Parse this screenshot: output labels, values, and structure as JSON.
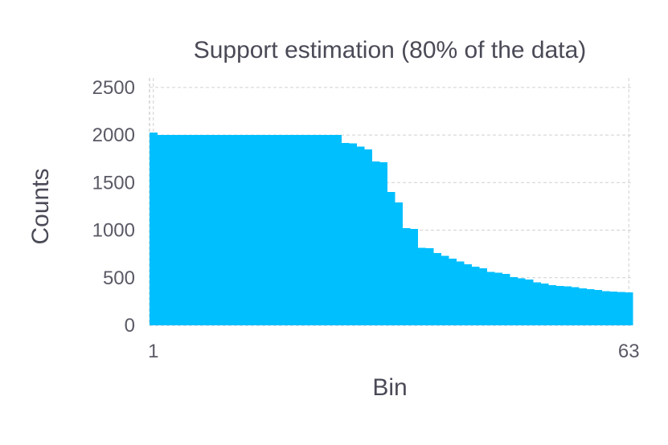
{
  "chart_data": {
    "type": "bar",
    "title": "Support estimation (80% of the data)",
    "xlabel": "Bin",
    "ylabel": "Counts",
    "ylim": [
      0,
      2600
    ],
    "yticks": [
      0,
      500,
      1000,
      1500,
      2000,
      2500
    ],
    "ytick_labels": [
      "0",
      "500",
      "1000",
      "1500",
      "2000",
      "2500"
    ],
    "xlim": [
      0.5,
      63.5
    ],
    "xticks": [
      1,
      63
    ],
    "xtick_labels": [
      "1",
      "63"
    ],
    "grid": true,
    "bar_color": "#00bfff",
    "x": [
      1,
      2,
      3,
      4,
      5,
      6,
      7,
      8,
      9,
      10,
      11,
      12,
      13,
      14,
      15,
      16,
      17,
      18,
      19,
      20,
      21,
      22,
      23,
      24,
      25,
      26,
      27,
      28,
      29,
      30,
      31,
      32,
      33,
      34,
      35,
      36,
      37,
      38,
      39,
      40,
      41,
      42,
      43,
      44,
      45,
      46,
      47,
      48,
      49,
      50,
      51,
      52,
      53,
      54,
      55,
      56,
      57,
      58,
      59,
      60,
      61,
      62,
      63
    ],
    "values": [
      2025,
      2000,
      2000,
      2000,
      2000,
      2000,
      2000,
      2000,
      2000,
      2000,
      2000,
      2000,
      2000,
      2000,
      2000,
      2000,
      2000,
      2000,
      2000,
      2000,
      2000,
      2000,
      2000,
      2000,
      2000,
      1915,
      1910,
      1880,
      1850,
      1720,
      1715,
      1400,
      1290,
      1020,
      1015,
      815,
      810,
      760,
      730,
      700,
      670,
      640,
      615,
      600,
      560,
      555,
      540,
      505,
      495,
      480,
      450,
      440,
      420,
      415,
      410,
      400,
      390,
      380,
      370,
      360,
      355,
      350,
      345
    ]
  }
}
